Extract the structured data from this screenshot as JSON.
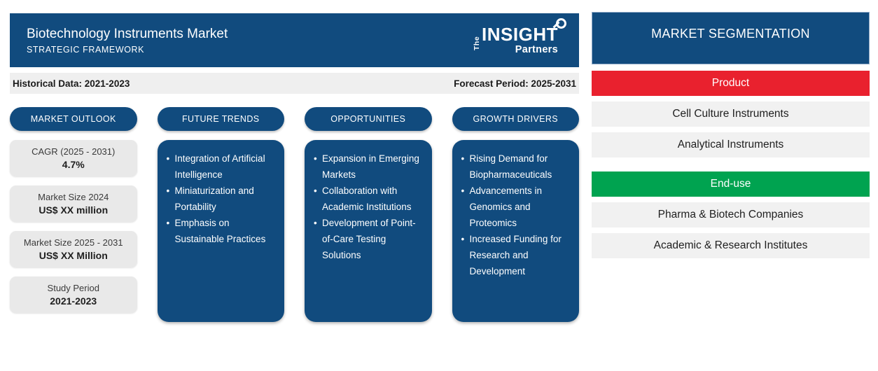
{
  "header": {
    "title": "Biotechnology Instruments Market",
    "subtitle": "STRATEGIC FRAMEWORK",
    "logo": {
      "the": "The",
      "insight": "INSIGHT",
      "partners": "Partners"
    }
  },
  "info_bar": {
    "historical": "Historical Data: 2021-2023",
    "forecast": "Forecast Period: 2025-2031"
  },
  "columns": [
    {
      "title": "MARKET OUTLOOK",
      "stats": [
        {
          "label": "CAGR (2025 - 2031)",
          "value": "4.7%"
        },
        {
          "label": "Market Size 2024",
          "value": "US$ XX million"
        },
        {
          "label": "Market Size 2025 - 2031",
          "value": "US$ XX Million"
        },
        {
          "label": "Study Period",
          "value": "2021-2023"
        }
      ]
    },
    {
      "title": "FUTURE TRENDS",
      "bullets": [
        "Integration of Artificial Intelligence",
        "Miniaturization and Portability",
        "Emphasis on Sustainable Practices"
      ]
    },
    {
      "title": "OPPORTUNITIES",
      "bullets": [
        "Expansion in Emerging Markets",
        "Collaboration with Academic Institutions",
        "Development of Point-of-Care Testing Solutions"
      ]
    },
    {
      "title": "GROWTH DRIVERS",
      "bullets": [
        "Rising Demand for Biopharmaceuticals",
        "Advancements in Genomics and Proteomics",
        "Increased Funding for Research and Development"
      ]
    }
  ],
  "segmentation": {
    "title": "MARKET SEGMENTATION",
    "groups": [
      {
        "label": "Product",
        "color": "#E9212E",
        "items": [
          "Cell Culture Instruments",
          "Analytical Instruments"
        ]
      },
      {
        "label": "End-use",
        "color": "#00A350",
        "items": [
          "Pharma & Biotech Companies",
          "Academic & Research Institutes"
        ]
      }
    ]
  },
  "colors": {
    "primary_blue": "#114B7E",
    "product_red": "#E9212E",
    "enduse_green": "#00A350",
    "info_bar_gray": "#EFEFEF",
    "card_gray": "#E9E9E9"
  }
}
